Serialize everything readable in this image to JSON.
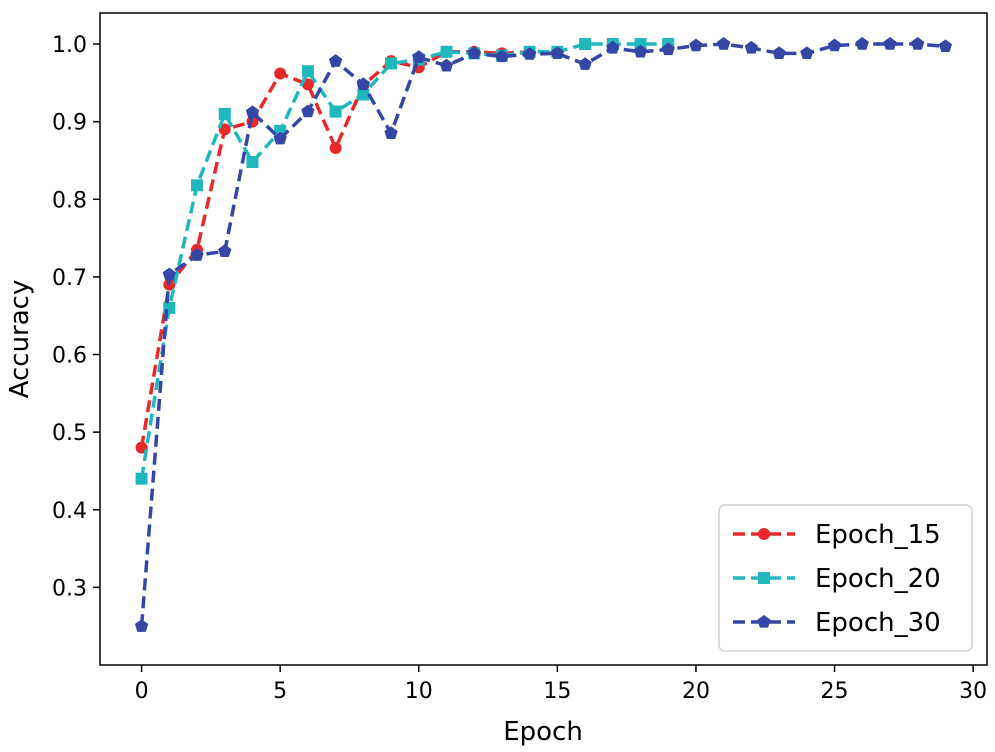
{
  "chart_data": {
    "type": "line",
    "title": "",
    "xlabel": "Epoch",
    "ylabel": "Accuracy",
    "xlim": [
      -1.5,
      30.5
    ],
    "ylim": [
      0.2,
      1.04
    ],
    "xticks": [
      0,
      5,
      10,
      15,
      20,
      25,
      30
    ],
    "yticks": [
      0.3,
      0.4,
      0.5,
      0.6,
      0.7,
      0.8,
      0.9,
      1.0
    ],
    "xtick_labels": [
      "0",
      "5",
      "10",
      "15",
      "20",
      "25",
      "30"
    ],
    "ytick_labels": [
      "0.3",
      "0.4",
      "0.5",
      "0.6",
      "0.7",
      "0.8",
      "0.9",
      "1.0"
    ],
    "grid": false,
    "legend_position": "bottom-right",
    "series": [
      {
        "name": "Epoch_15",
        "color": "#e8292b",
        "marker": "circle",
        "x": [
          0,
          1,
          2,
          3,
          4,
          5,
          6,
          7,
          8,
          9,
          10,
          11,
          12,
          13,
          14
        ],
        "values": [
          0.48,
          0.69,
          0.735,
          0.89,
          0.9,
          0.962,
          0.948,
          0.866,
          0.947,
          0.978,
          0.97,
          0.99,
          0.99,
          0.988,
          0.99
        ]
      },
      {
        "name": "Epoch_20",
        "color": "#20b8bd",
        "marker": "square",
        "x": [
          0,
          1,
          2,
          3,
          4,
          5,
          6,
          7,
          8,
          9,
          10,
          11,
          12,
          13,
          14,
          15,
          16,
          17,
          18,
          19
        ],
        "values": [
          0.44,
          0.66,
          0.818,
          0.91,
          0.848,
          0.888,
          0.965,
          0.913,
          0.935,
          0.975,
          0.98,
          0.99,
          0.988,
          0.985,
          0.99,
          0.99,
          1.0,
          1.0,
          1.0,
          1.0
        ]
      },
      {
        "name": "Epoch_30",
        "color": "#3546a6",
        "marker": "pentagon",
        "x": [
          0,
          1,
          2,
          3,
          4,
          5,
          6,
          7,
          8,
          9,
          10,
          11,
          12,
          13,
          14,
          15,
          16,
          17,
          18,
          19,
          20,
          21,
          22,
          23,
          24,
          25,
          26,
          27,
          28,
          29
        ],
        "values": [
          0.25,
          0.703,
          0.728,
          0.733,
          0.912,
          0.878,
          0.913,
          0.978,
          0.948,
          0.885,
          0.983,
          0.972,
          0.988,
          0.984,
          0.987,
          0.988,
          0.974,
          0.995,
          0.99,
          0.993,
          0.998,
          1.0,
          0.995,
          0.988,
          0.988,
          0.998,
          1.0,
          1.0,
          1.0,
          0.997
        ]
      }
    ]
  }
}
